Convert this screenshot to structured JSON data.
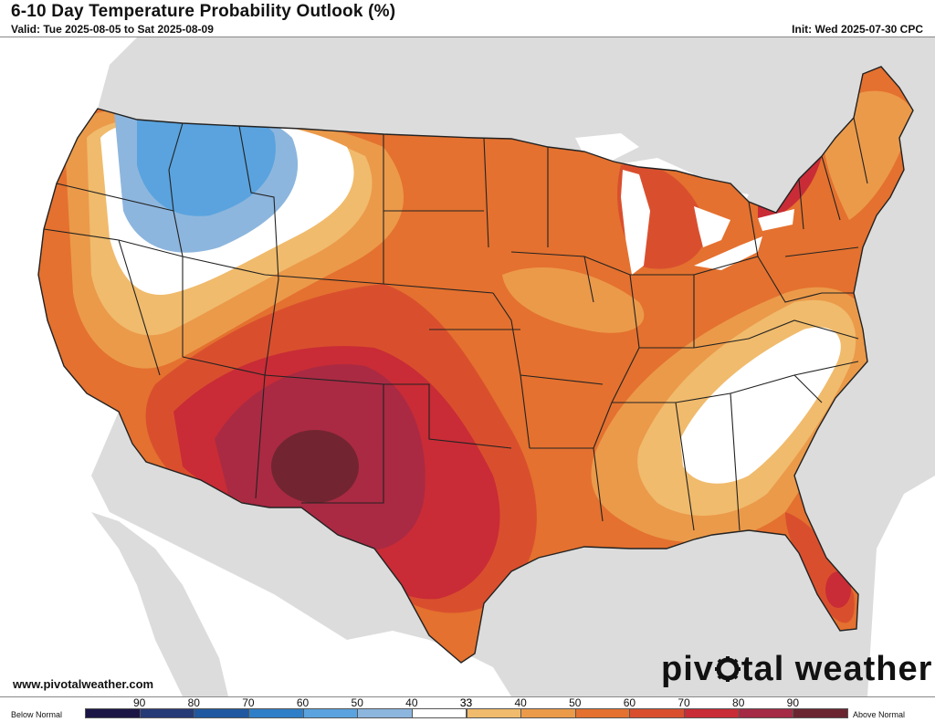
{
  "header": {
    "title": "6-10 Day Temperature Probability Outlook (%)",
    "valid": "Valid: Tue 2025-08-05 to Sat 2025-08-09",
    "init": "Init: Wed 2025-07-30 CPC"
  },
  "footer": {
    "site": "www.pivotalweather.com",
    "brand_left": "piv",
    "brand_right": "tal weather"
  },
  "legend": {
    "below_label": "Below Normal",
    "above_label": "Above Normal",
    "bins": [
      {
        "label": "90",
        "color": "#1b1545"
      },
      {
        "label": "80",
        "color": "#263a78"
      },
      {
        "label": "70",
        "color": "#1f58a0"
      },
      {
        "label": "60",
        "color": "#2f7fc8"
      },
      {
        "label": "50",
        "color": "#5aa3de"
      },
      {
        "label": "40",
        "color": "#8db6de"
      },
      {
        "label": "33",
        "color": "#ffffff"
      },
      {
        "label": "33",
        "color": "#f0bb6c"
      },
      {
        "label": "40",
        "color": "#eb9a4a"
      },
      {
        "label": "50",
        "color": "#e4712f"
      },
      {
        "label": "60",
        "color": "#d94f2e"
      },
      {
        "label": "70",
        "color": "#c92c36"
      },
      {
        "label": "80",
        "color": "#a52a45"
      },
      {
        "label": "90",
        "color": "#6b2530"
      }
    ]
  },
  "colors": {
    "ocean": "#ffffff",
    "land_outside": "#dcdcdc",
    "borders": "#222222"
  }
}
